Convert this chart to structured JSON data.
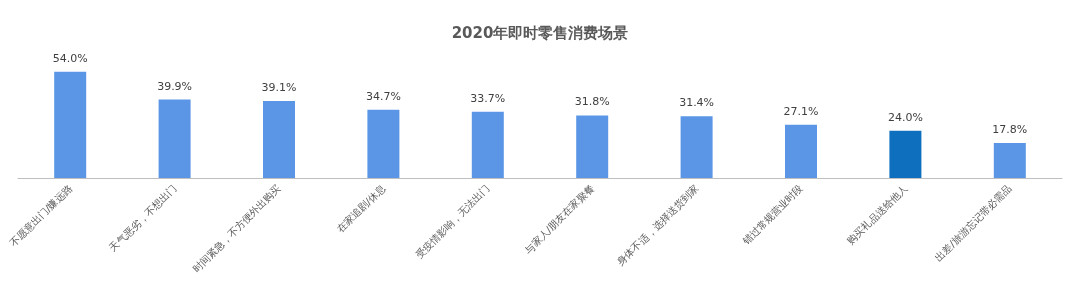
{
  "chart_data": {
    "type": "bar",
    "title": "2020年即时零售消费场景",
    "categories": [
      "不愿意出门/嫌远路",
      "天气恶劣，不想出门",
      "时间紧急，不方便外出购买",
      "在家追剧/休息",
      "受疫情影响，无法出门",
      "与家人/朋友在家聚餐",
      "身体不适，选择送货到家",
      "错过常规营业时段",
      "购买礼品送给他人",
      "出差/旅游忘记带必需品"
    ],
    "values": [
      54.0,
      39.9,
      39.1,
      34.7,
      33.7,
      31.8,
      31.4,
      27.1,
      24.0,
      17.8
    ],
    "colors": [
      "#5b96e6",
      "#5b96e6",
      "#5b96e6",
      "#5b96e6",
      "#5b96e6",
      "#5b96e6",
      "#5b96e6",
      "#5b96e6",
      "#0f6fbf",
      "#5b96e6"
    ],
    "value_labels": [
      "54.0%",
      "39.9%",
      "39.1%",
      "34.7%",
      "33.7%",
      "31.8%",
      "31.4%",
      "27.1%",
      "24.0%",
      "17.8%"
    ]
  }
}
